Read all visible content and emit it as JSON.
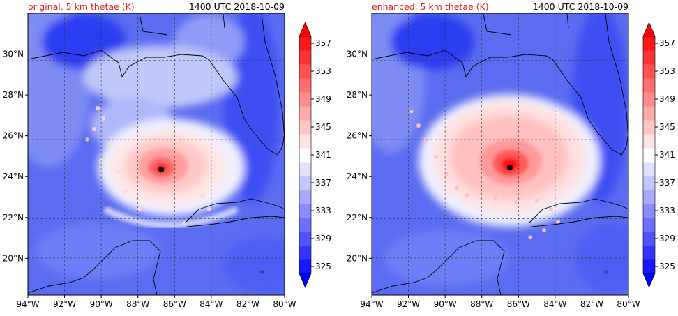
{
  "chart_data": [
    {
      "type": "heatmap",
      "title_left": "original, 5 km thetae (K)",
      "title_right": "1400 UTC 2018-10-09",
      "variable": "thetae",
      "units": "K",
      "level": "5 km",
      "xlim": [
        -94,
        -80
      ],
      "ylim": [
        18.2,
        32.0
      ],
      "xticks": [
        "94°W",
        "92°W",
        "90°W",
        "88°W",
        "86°W",
        "84°W",
        "82°W",
        "80°W"
      ],
      "yticks": [
        "20°N",
        "22°N",
        "24°N",
        "26°N",
        "28°N",
        "30°N"
      ],
      "colorbar_ticks": [
        "325",
        "329",
        "333",
        "337",
        "341",
        "345",
        "349",
        "353",
        "357"
      ],
      "colorbar_range": [
        325,
        359
      ],
      "colorbar_step": 2,
      "storm_center": {
        "lon": -86.6,
        "lat": 24.45
      },
      "max_core_value": 357,
      "grid": true
    },
    {
      "type": "heatmap",
      "title_left": "enhanced, 5 km thetae (K)",
      "title_right": "1400 UTC 2018-10-09",
      "variable": "thetae",
      "units": "K",
      "level": "5 km",
      "xlim": [
        -94,
        -80
      ],
      "ylim": [
        18.2,
        32.0
      ],
      "xticks": [
        "94°W",
        "92°W",
        "90°W",
        "88°W",
        "86°W",
        "84°W",
        "82°W",
        "80°W"
      ],
      "yticks": [
        "20°N",
        "22°N",
        "24°N",
        "26°N",
        "28°N",
        "30°N"
      ],
      "colorbar_ticks": [
        "325",
        "329",
        "333",
        "337",
        "341",
        "345",
        "349",
        "353",
        "357"
      ],
      "colorbar_range": [
        325,
        359
      ],
      "colorbar_step": 2,
      "storm_center": {
        "lon": -86.4,
        "lat": 24.6
      },
      "max_core_value": 359,
      "grid": true
    }
  ],
  "colors": {
    "title": "#e0201e",
    "low_end": "#0000ff",
    "mid": "#ffffff",
    "high_end": "#ff0000",
    "coast": "#000000"
  }
}
